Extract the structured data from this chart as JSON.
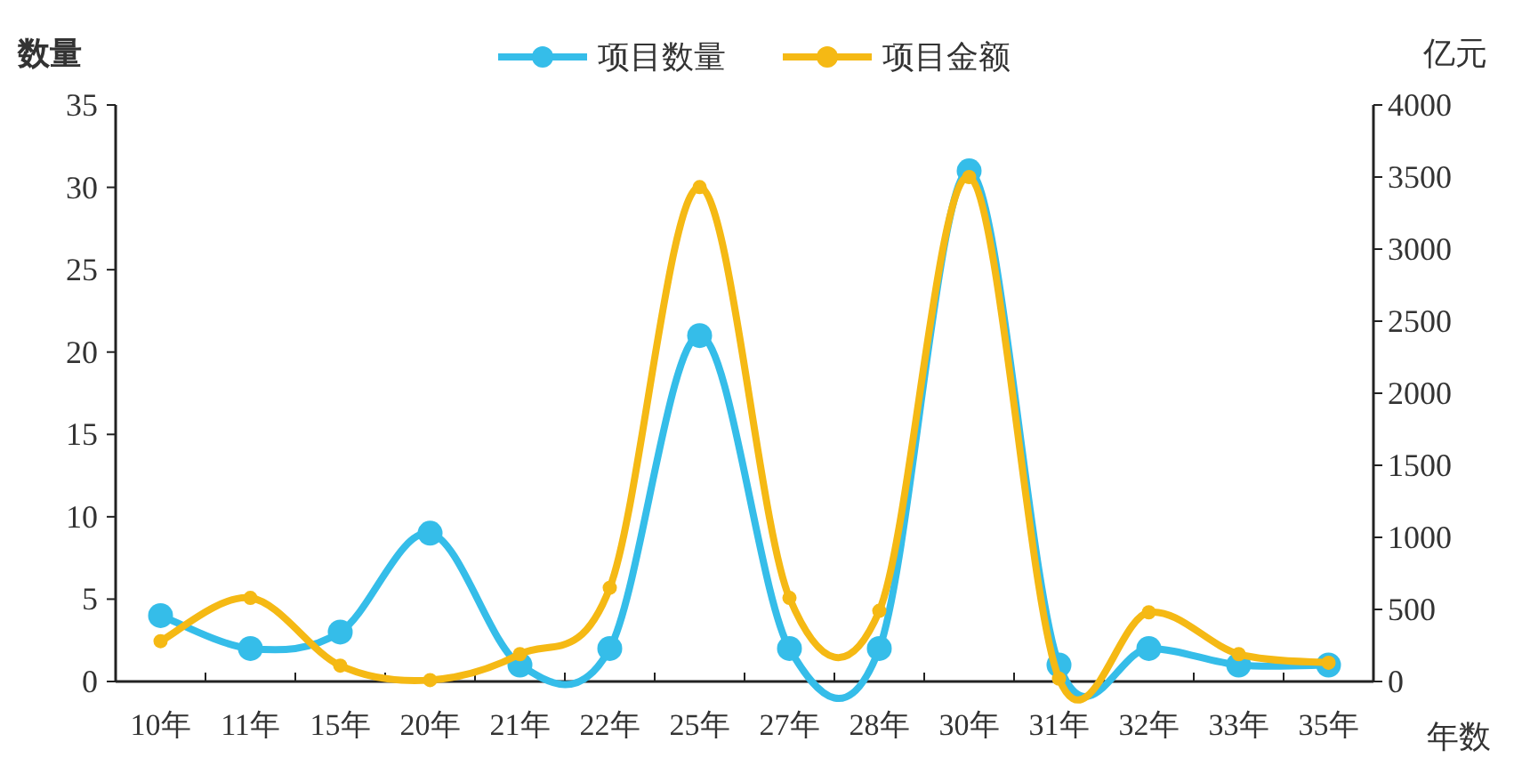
{
  "chart_data": {
    "type": "line",
    "ylabel": "数量",
    "y2label": "亿元",
    "xlabel": "年数",
    "categories": [
      "10年",
      "11年",
      "15年",
      "20年",
      "21年",
      "22年",
      "25年",
      "27年",
      "28年",
      "30年",
      "31年",
      "32年",
      "33年",
      "35年"
    ],
    "series": [
      {
        "name": "项目数量",
        "color": "#35bde9",
        "values": [
          4,
          2,
          3,
          9,
          1,
          2,
          21,
          2,
          2,
          31,
          1,
          2,
          1,
          1
        ]
      },
      {
        "name": "项目金额",
        "color": "#f5b914",
        "axis": "y2",
        "values": [
          280,
          580,
          110,
          10,
          190,
          650,
          3430,
          580,
          490,
          3500,
          20,
          480,
          190,
          130
        ]
      }
    ],
    "ylim": [
      0,
      35
    ],
    "yticks": [
      0,
      5,
      10,
      15,
      20,
      25,
      30,
      35
    ],
    "y2lim": [
      0,
      4000
    ],
    "y2ticks": [
      0,
      500,
      1000,
      1500,
      2000,
      2500,
      3000,
      3500,
      4000
    ],
    "marker": "circle",
    "legend": "top",
    "grid": false
  }
}
